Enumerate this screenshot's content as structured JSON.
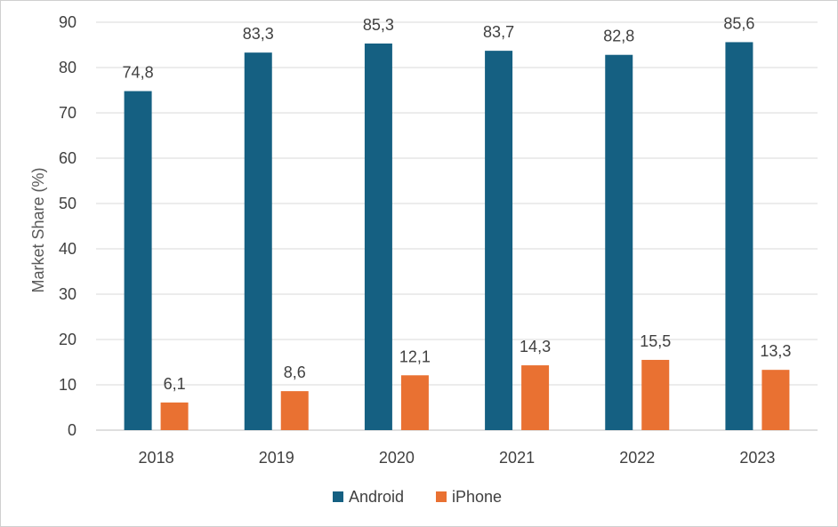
{
  "chart_data": {
    "type": "bar",
    "title": "",
    "xlabel": "",
    "ylabel": "Market Share (%)",
    "ylim": [
      0,
      90
    ],
    "yticks": [
      "0",
      "10",
      "20",
      "30",
      "40",
      "50",
      "60",
      "70",
      "80",
      "90"
    ],
    "grid": true,
    "legend_position": "bottom",
    "categories": [
      "2018",
      "2019",
      "2020",
      "2021",
      "2022",
      "2023"
    ],
    "series": [
      {
        "name": "Android",
        "color": "#156082",
        "values": [
          74.8,
          83.3,
          85.3,
          83.7,
          82.8,
          85.6
        ],
        "labels": [
          "74,8",
          "83,3",
          "85,3",
          "83,7",
          "82,8",
          "85,6"
        ]
      },
      {
        "name": "iPhone",
        "color": "#E97132",
        "values": [
          6.1,
          8.6,
          12.1,
          14.3,
          15.5,
          13.3
        ],
        "labels": [
          "6,1",
          "8,6",
          "12,1",
          "14,3",
          "15,5",
          "13,3"
        ]
      }
    ]
  }
}
